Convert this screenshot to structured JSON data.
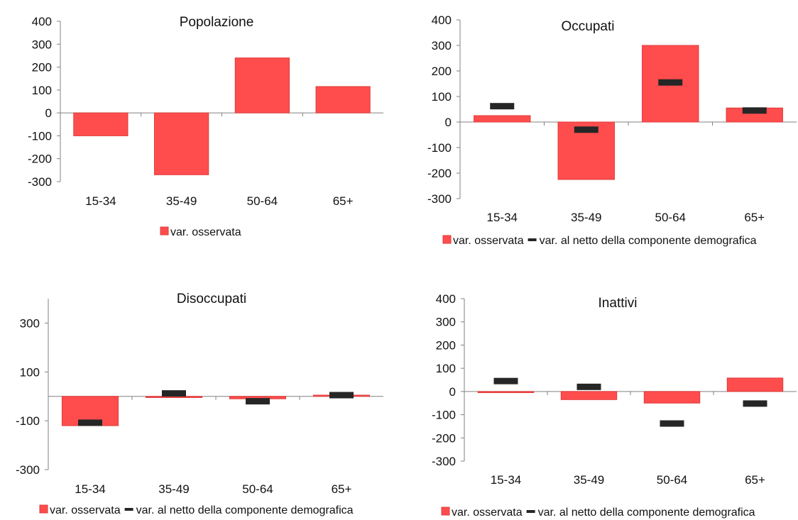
{
  "colors": {
    "bar": "#ff4d4d",
    "bar_stroke": "#e03a3a",
    "marker": "#262626",
    "axis": "#808080"
  },
  "legend_labels": {
    "observed": "var. osservata",
    "net": "var. al netto della componente demografica"
  },
  "chart_data": [
    {
      "type": "bar",
      "title": "Popolazione",
      "categories": [
        "15-34",
        "35-49",
        "50-64",
        "65+"
      ],
      "series": [
        {
          "name": "var. osservata",
          "values": [
            -100,
            -270,
            240,
            115
          ]
        }
      ],
      "ylim": [
        -300,
        400
      ],
      "yticks": [
        400,
        300,
        200,
        100,
        0,
        -100,
        -200,
        -300
      ],
      "legend_position": "bottom"
    },
    {
      "type": "bar",
      "title": "Occupati",
      "categories": [
        "15-34",
        "35-49",
        "50-64",
        "65+"
      ],
      "series": [
        {
          "name": "var. osservata",
          "values": [
            25,
            -225,
            300,
            55
          ]
        },
        {
          "name": "var. al netto della componente demografica",
          "values": [
            62,
            -30,
            155,
            45
          ]
        }
      ],
      "ylim": [
        -300,
        400
      ],
      "yticks": [
        400,
        300,
        200,
        100,
        0,
        -100,
        -200,
        -300
      ],
      "legend_position": "bottom"
    },
    {
      "type": "bar",
      "title": "Disoccupati",
      "categories": [
        "15-34",
        "35-49",
        "50-64",
        "65+"
      ],
      "series": [
        {
          "name": "var. osservata",
          "values": [
            -120,
            -5,
            -10,
            5
          ]
        },
        {
          "name": "var. al netto della componente demografica",
          "values": [
            -108,
            12,
            -20,
            5
          ]
        }
      ],
      "ylim": [
        -300,
        400
      ],
      "yticks": [
        300,
        100,
        -100,
        -300
      ],
      "legend_position": "bottom"
    },
    {
      "type": "bar",
      "title": "Inattivi",
      "categories": [
        "15-34",
        "35-49",
        "50-64",
        "65+"
      ],
      "series": [
        {
          "name": "var. osservata",
          "values": [
            -5,
            -35,
            -50,
            58
          ]
        },
        {
          "name": "var. al netto della componente demografica",
          "values": [
            45,
            20,
            -138,
            -52
          ]
        }
      ],
      "ylim": [
        -300,
        400
      ],
      "yticks": [
        400,
        300,
        200,
        100,
        0,
        -100,
        -200,
        -300
      ],
      "legend_position": "bottom"
    }
  ]
}
